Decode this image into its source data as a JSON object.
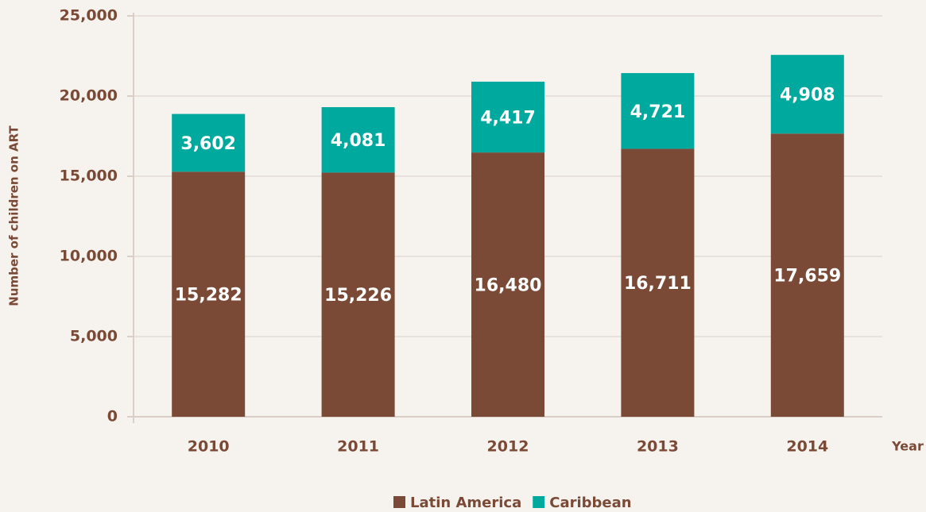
{
  "chart_data": {
    "type": "stacked_bar",
    "y_label": "Number of children on ART",
    "x_label": "Year",
    "categories": [
      "2010",
      "2011",
      "2012",
      "2013",
      "2014"
    ],
    "series": [
      {
        "name": "Latin America",
        "color": "#7a4a37",
        "values": [
          15282,
          15226,
          16480,
          16711,
          17659
        ],
        "value_labels": [
          "15,282",
          "15,226",
          "16,480",
          "16,711",
          "17,659"
        ]
      },
      {
        "name": "Caribbean",
        "color": "#00a99d",
        "values": [
          3602,
          4081,
          4417,
          4721,
          4908
        ],
        "value_labels": [
          "3,602",
          "4,081",
          "4,417",
          "4,721",
          "4,908"
        ]
      }
    ],
    "ylim": [
      0,
      25000
    ],
    "yticks": [
      0,
      {
        "value": 5000,
        "label": "5,000"
      },
      {
        "value": 10000,
        "label": "10,000"
      },
      {
        "value": 15000,
        "label": "15,000"
      },
      {
        "value": 20000,
        "label": "20,000"
      },
      {
        "value": 25000,
        "label": "25,000"
      }
    ],
    "grid": true,
    "legend": "bottom"
  }
}
